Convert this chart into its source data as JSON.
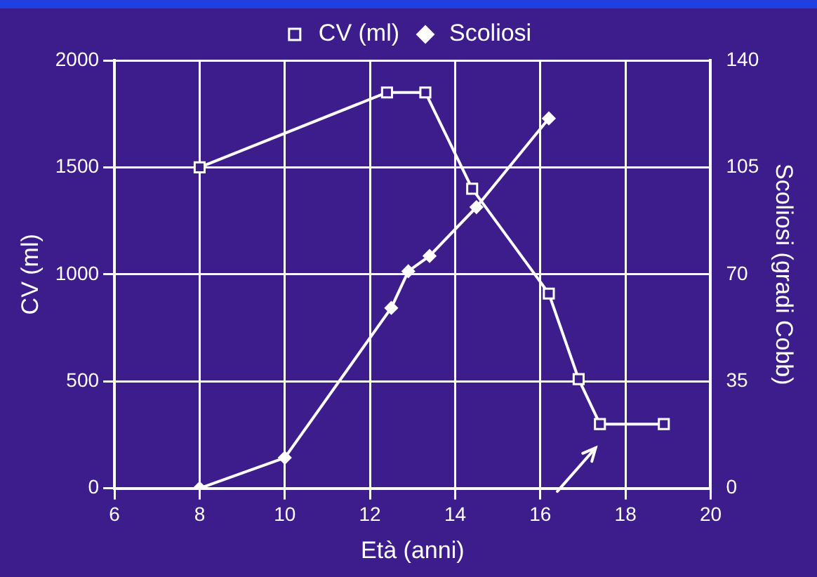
{
  "chart_data": {
    "type": "line",
    "xlabel": "Età (anni)",
    "ylabel": "CV (ml)",
    "y2label": "Scoliosi (gradi Cobb)",
    "xlim": [
      6,
      20
    ],
    "xticks": [
      6,
      8,
      10,
      12,
      14,
      16,
      18,
      20
    ],
    "ylim": [
      0,
      2000
    ],
    "yticks": [
      0,
      500,
      1000,
      1500,
      2000
    ],
    "y2lim": [
      0,
      140
    ],
    "y2ticks": [
      0,
      35,
      70,
      105,
      140
    ],
    "grid": true,
    "legend": "top",
    "series": [
      {
        "name": "CV (ml)",
        "color": "#ffffff",
        "marker": "square",
        "x": [
          8,
          12.4,
          13.3,
          14.4,
          16.2,
          16.9,
          17.4,
          18.9
        ],
        "values": [
          1500,
          1850,
          1850,
          1400,
          910,
          510,
          300,
          300
        ]
      },
      {
        "name": "Scoliosi",
        "color": "#ffffff",
        "marker": "diamond",
        "axis": "y2",
        "x": [
          8,
          10,
          12.5,
          12.9,
          13.4,
          14.5,
          16.2
        ],
        "values": [
          0,
          10,
          59,
          71,
          76,
          92,
          121
        ]
      }
    ]
  }
}
